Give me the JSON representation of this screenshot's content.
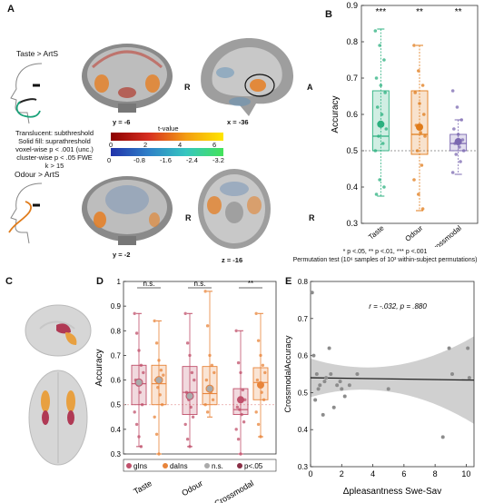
{
  "panels": {
    "a": "A",
    "b": "B",
    "c": "C",
    "d": "D",
    "e": "E"
  },
  "panel_a": {
    "taste_label": "Taste > ArtS",
    "odour_label": "Odour > ArtS",
    "coronal_top_coord": "y = -6",
    "sagittal_coord": "x = -36",
    "coronal_bottom_coord": "y = -2",
    "axial_coord": "z = -16",
    "r_label": "R",
    "a_label": "A",
    "colorbar_title": "t-value",
    "pos_ticks": [
      "0",
      "2",
      "4",
      "6"
    ],
    "neg_ticks": [
      "0",
      "-0.8",
      "-1.6",
      "-2.4",
      "-3.2"
    ],
    "legend_lines": [
      "Translucent: subthreshold",
      "Solid fill: suprathreshold",
      "voxel-wise p < .001 (unc.)",
      "cluster-wise p < .05 FWE",
      "k > 15"
    ],
    "colors": {
      "taste_tube": "#1aa37a",
      "odour_tube": "#e07b1a"
    }
  },
  "panel_b_note": {
    "line1": "* p <.05, ** p <.01, *** p <.001",
    "line2": "Permutation test (10⁶ samples of 10³ within-subject permutations)"
  },
  "chart_data": [
    {
      "type": "box",
      "panel": "B",
      "ylabel": "Accuracy",
      "ylim": [
        0.3,
        0.9
      ],
      "yticks": [
        "0.3",
        "0.4",
        "0.5",
        "0.6",
        "0.7",
        "0.8",
        "0.9"
      ],
      "chance": 0.5,
      "categories": [
        "Taste",
        "Odour",
        "Crossmodal"
      ],
      "significance": [
        "***",
        "**",
        "**"
      ],
      "colors": [
        "#2bb07f",
        "#e07b1a",
        "#7b68b0"
      ],
      "boxes": [
        {
          "min": 0.375,
          "q1": 0.5,
          "median": 0.54,
          "q3": 0.665,
          "max": 0.835,
          "mean": 0.573
        },
        {
          "min": 0.335,
          "q1": 0.49,
          "median": 0.545,
          "q3": 0.665,
          "max": 0.79,
          "mean": 0.565
        },
        {
          "min": 0.435,
          "q1": 0.5,
          "median": 0.52,
          "q3": 0.545,
          "max": 0.585,
          "mean": 0.525
        }
      ],
      "points": [
        [
          0.83,
          0.79,
          0.75,
          0.7,
          0.68,
          0.66,
          0.62,
          0.6,
          0.56,
          0.54,
          0.52,
          0.5,
          0.42,
          0.4,
          0.38
        ],
        [
          0.79,
          0.72,
          0.68,
          0.66,
          0.63,
          0.6,
          0.57,
          0.55,
          0.54,
          0.5,
          0.46,
          0.42,
          0.38,
          0.34
        ],
        [
          0.665,
          0.62,
          0.585,
          0.56,
          0.545,
          0.53,
          0.52,
          0.51,
          0.5,
          0.49,
          0.47,
          0.44
        ]
      ]
    },
    {
      "type": "box",
      "panel": "D",
      "ylabel": "Accuracy",
      "ylim": [
        0.3,
        1.0
      ],
      "yticks": [
        "0.3",
        "0.4",
        "0.5",
        "0.6",
        "0.7",
        "0.8",
        "0.9",
        "1"
      ],
      "chance": 0.5,
      "categories": [
        "Taste",
        "Odour",
        "Crossmodal"
      ],
      "significance": [
        "n.s.",
        "n.s.",
        "**"
      ],
      "series": [
        {
          "name": "gIns",
          "color": "#c0506b"
        },
        {
          "name": "daIns",
          "color": "#e8843a"
        }
      ],
      "legend": [
        "gIns",
        "daIns",
        "n.s.",
        "p<.05"
      ],
      "boxes": [
        {
          "min": 0.33,
          "q1": 0.5,
          "median": 0.585,
          "q3": 0.66,
          "max": 0.87,
          "mean": 0.59
        },
        {
          "min": 0.3,
          "q1": 0.5,
          "median": 0.585,
          "q3": 0.66,
          "max": 0.84,
          "mean": 0.6
        },
        {
          "min": 0.33,
          "q1": 0.46,
          "median": 0.55,
          "q3": 0.655,
          "max": 0.87,
          "mean": 0.535
        },
        {
          "min": 0.45,
          "q1": 0.5,
          "median": 0.545,
          "q3": 0.655,
          "max": 0.96,
          "mean": 0.565
        },
        {
          "min": 0.3,
          "q1": 0.46,
          "median": 0.48,
          "q3": 0.565,
          "max": 0.8,
          "mean": 0.52
        },
        {
          "min": 0.37,
          "q1": 0.52,
          "median": 0.59,
          "q3": 0.65,
          "max": 0.87,
          "mean": 0.58
        }
      ],
      "points": [
        [
          0.87,
          0.79,
          0.72,
          0.66,
          0.63,
          0.6,
          0.58,
          0.55,
          0.5,
          0.47,
          0.42,
          0.37,
          0.33
        ],
        [
          0.84,
          0.75,
          0.68,
          0.64,
          0.62,
          0.6,
          0.57,
          0.54,
          0.5,
          0.45,
          0.38,
          0.3
        ],
        [
          0.87,
          0.75,
          0.7,
          0.63,
          0.6,
          0.55,
          0.52,
          0.49,
          0.45,
          0.42,
          0.36,
          0.33
        ],
        [
          0.96,
          0.82,
          0.7,
          0.66,
          0.63,
          0.6,
          0.57,
          0.55,
          0.52,
          0.5,
          0.47
        ],
        [
          0.8,
          0.67,
          0.63,
          0.56,
          0.52,
          0.49,
          0.48,
          0.46,
          0.43,
          0.4,
          0.36,
          0.3
        ],
        [
          0.87,
          0.76,
          0.7,
          0.66,
          0.63,
          0.6,
          0.58,
          0.55,
          0.52,
          0.47,
          0.42,
          0.37
        ]
      ]
    },
    {
      "type": "scatter",
      "panel": "E",
      "xlabel": "Δpleasantness Swe-Sav",
      "ylabel": "CrossmodalAccuracy",
      "xlim": [
        0,
        10.5
      ],
      "ylim": [
        0.3,
        0.8
      ],
      "xticks": [
        "0",
        "2",
        "4",
        "6",
        "8",
        "10"
      ],
      "yticks": [
        "0.3",
        "0.4",
        "0.5",
        "0.6",
        "0.7",
        "0.8"
      ],
      "stat_r": "r = -.032",
      "stat_p": "p = .880",
      "fit": {
        "intercept": 0.54,
        "slope": -0.0006
      },
      "x": [
        0.1,
        0.2,
        0.3,
        0.4,
        0.5,
        0.6,
        0.8,
        0.9,
        1.0,
        1.2,
        1.3,
        1.5,
        1.7,
        1.9,
        2.0,
        2.2,
        2.5,
        3.0,
        5.0,
        8.5,
        8.9,
        9.1,
        10.1,
        10.2
      ],
      "y": [
        0.77,
        0.6,
        0.48,
        0.55,
        0.51,
        0.52,
        0.44,
        0.53,
        0.54,
        0.62,
        0.55,
        0.46,
        0.52,
        0.53,
        0.51,
        0.49,
        0.52,
        0.55,
        0.51,
        0.38,
        0.62,
        0.55,
        0.62,
        0.54
      ]
    }
  ]
}
